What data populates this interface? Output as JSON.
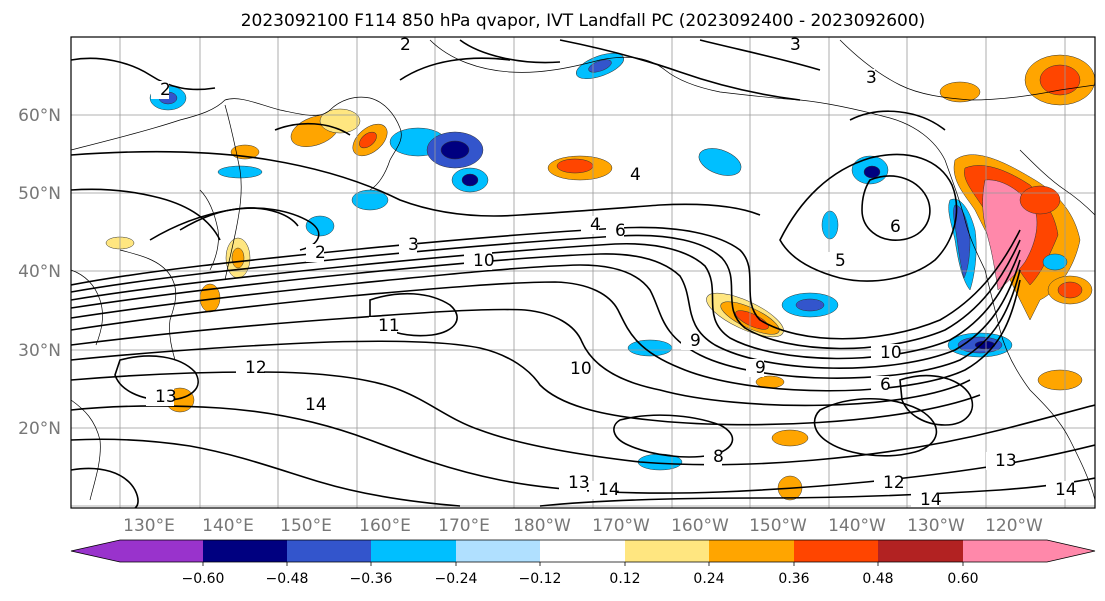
{
  "title": "2023092100 F114 850 hPa qvapor, IVT Landfall PC (2023092400 - 2023092600)",
  "lat_labels": [
    "60°N",
    "50°N",
    "40°N",
    "30°N",
    "20°N"
  ],
  "lon_labels": [
    "130°E",
    "140°E",
    "150°E",
    "160°E",
    "170°E",
    "180°W",
    "170°W",
    "160°W",
    "150°W",
    "140°W",
    "130°W",
    "120°W"
  ],
  "colorbar": {
    "ticks": [
      "−0.60",
      "−0.48",
      "−0.36",
      "−0.24",
      "−0.12",
      "0.12",
      "0.24",
      "0.36",
      "0.48",
      "0.60"
    ],
    "colors": [
      "#9933cc",
      "#000080",
      "#3355cc",
      "#00bfff",
      "#b0e0ff",
      "#ffffff",
      "#ffe680",
      "#ffa500",
      "#ff4500",
      "#b22222",
      "#ff88aa"
    ]
  },
  "contour_labels": [
    "2",
    "2",
    "2",
    "3",
    "4",
    "4",
    "6",
    "5",
    "6",
    "3",
    "10",
    "11",
    "12",
    "13",
    "14",
    "10",
    "10",
    "9",
    "9",
    "8",
    "6",
    "13",
    "14",
    "14",
    "13",
    "12",
    "14",
    "3"
  ]
}
